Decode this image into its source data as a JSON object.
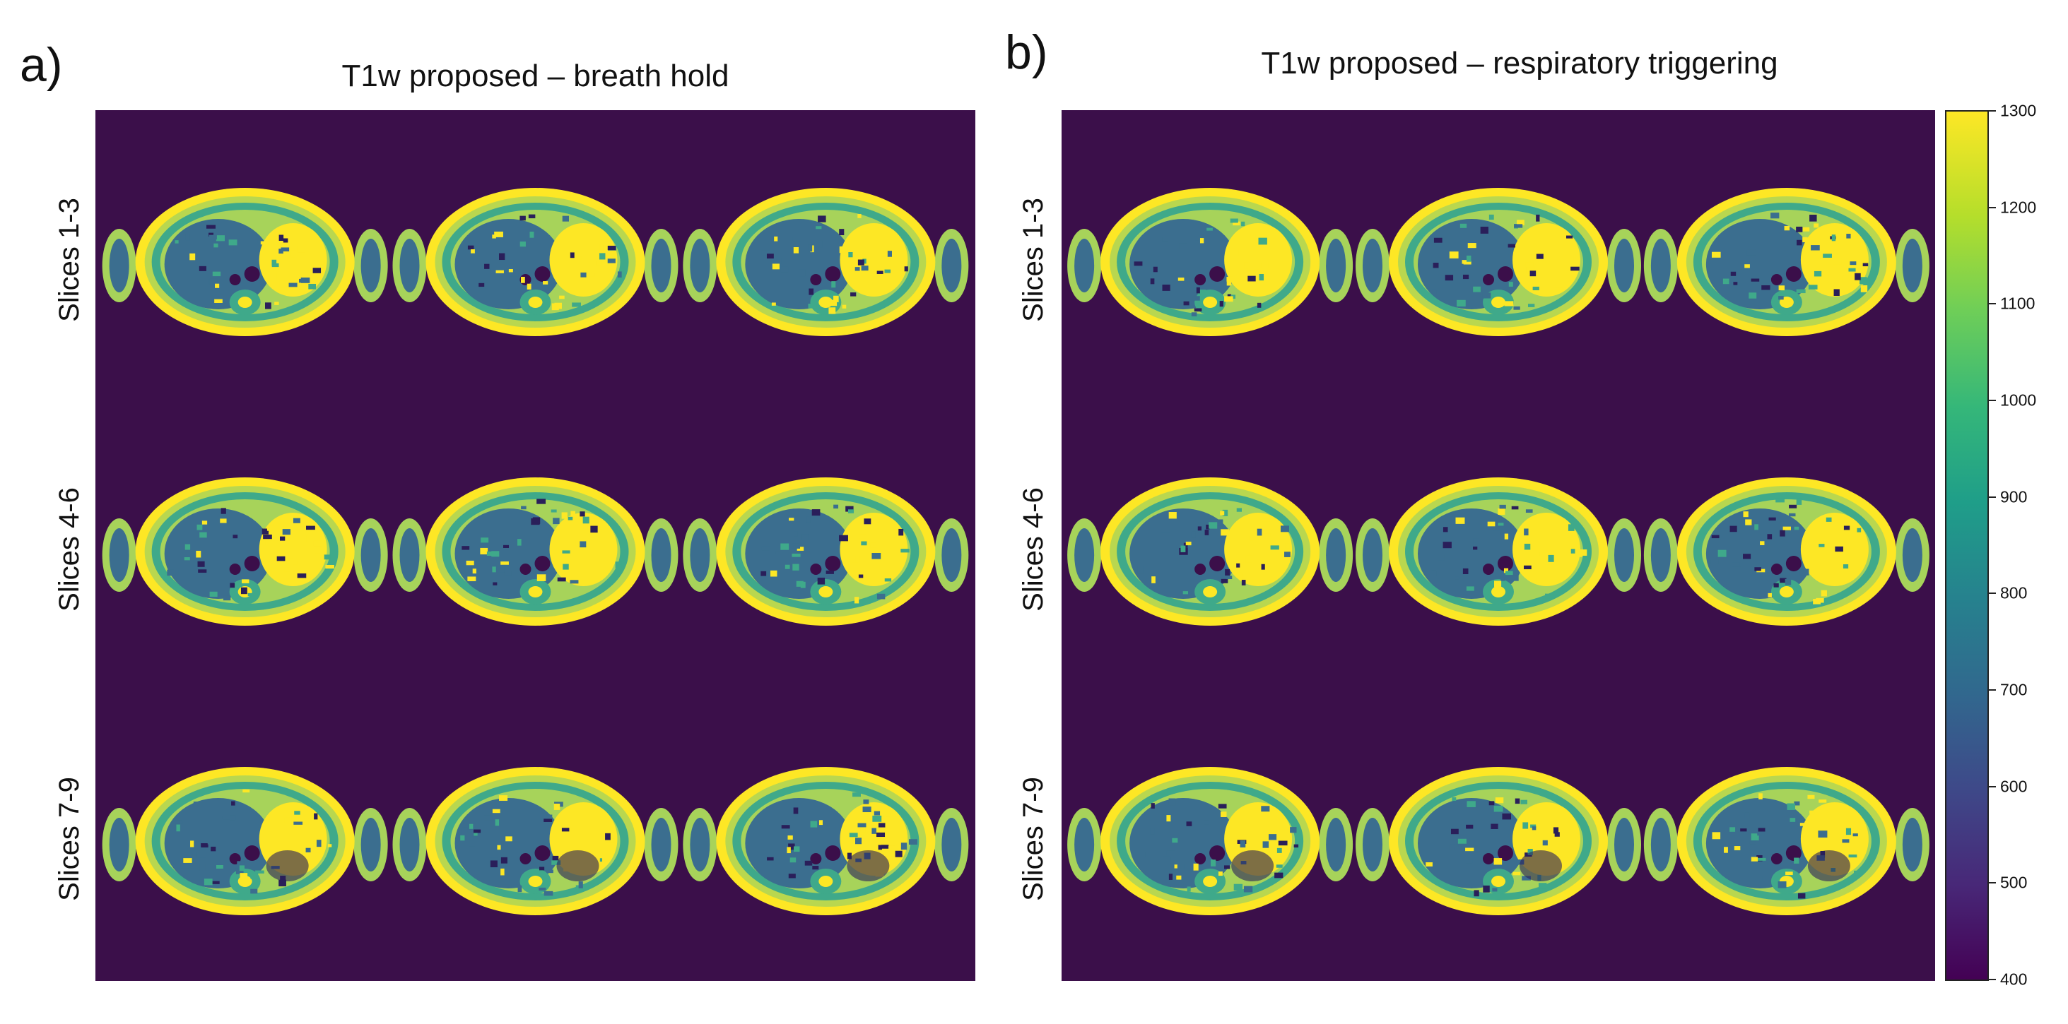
{
  "panels": [
    {
      "letter": "a)",
      "title": "T1w proposed – breath hold",
      "rows": [
        "Slices  1-3",
        "Slices  4-6",
        "Slices  7-9"
      ]
    },
    {
      "letter": "b)",
      "title": "T1w proposed – respiratory triggering",
      "rows": [
        "Slices  1-3",
        "Slices  4-6",
        "Slices  7-9"
      ]
    }
  ],
  "colorbar": {
    "min": 400,
    "max": 1300,
    "ticks": [
      "1300",
      "1200",
      "1100",
      "1000",
      "900",
      "800",
      "700",
      "600",
      "500",
      "400"
    ]
  },
  "colors": {
    "background": "#3b0f4a",
    "bright": "#fde725",
    "tissue": "#3b6e8f",
    "mid": "#3fa98a",
    "light": "#a7d35a"
  }
}
